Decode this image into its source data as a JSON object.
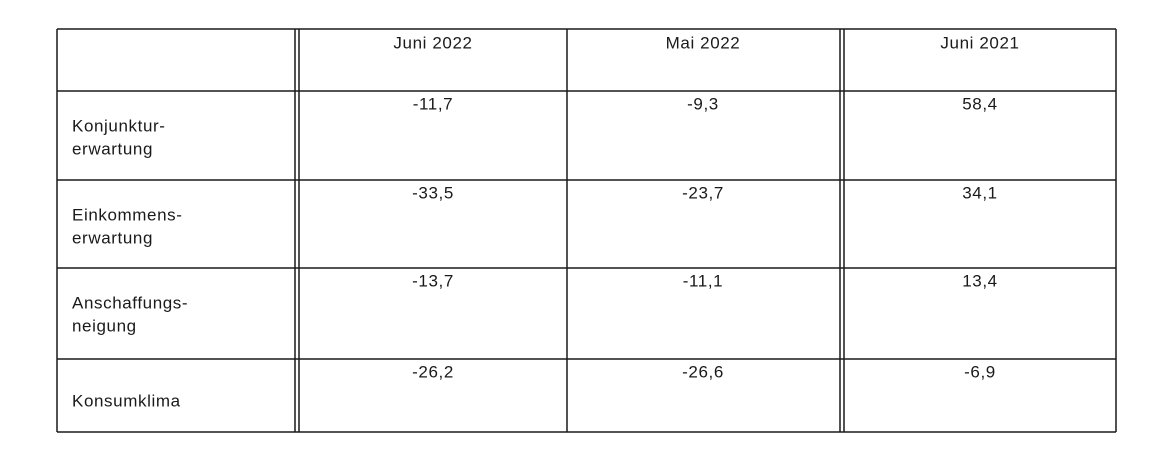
{
  "table": {
    "header": [
      "Juni 2022",
      "Mai 2022",
      "Juni 2021"
    ],
    "rows": [
      {
        "label": [
          "Konjunktur-",
          "erwartung"
        ],
        "cells": [
          "-11,7",
          "-9,3",
          "58,4"
        ]
      },
      {
        "label": [
          "Einkommens-",
          "erwartung"
        ],
        "cells": [
          "-33,5",
          "-23,7",
          "34,1"
        ]
      },
      {
        "label": [
          "Anschaffungs-",
          "neigung"
        ],
        "cells": [
          "-13,7",
          "-11,1",
          "13,4"
        ]
      },
      {
        "label": [
          "Konsumklima"
        ],
        "cells": [
          "-26,2",
          "-26,6",
          "-6,9"
        ]
      }
    ]
  }
}
